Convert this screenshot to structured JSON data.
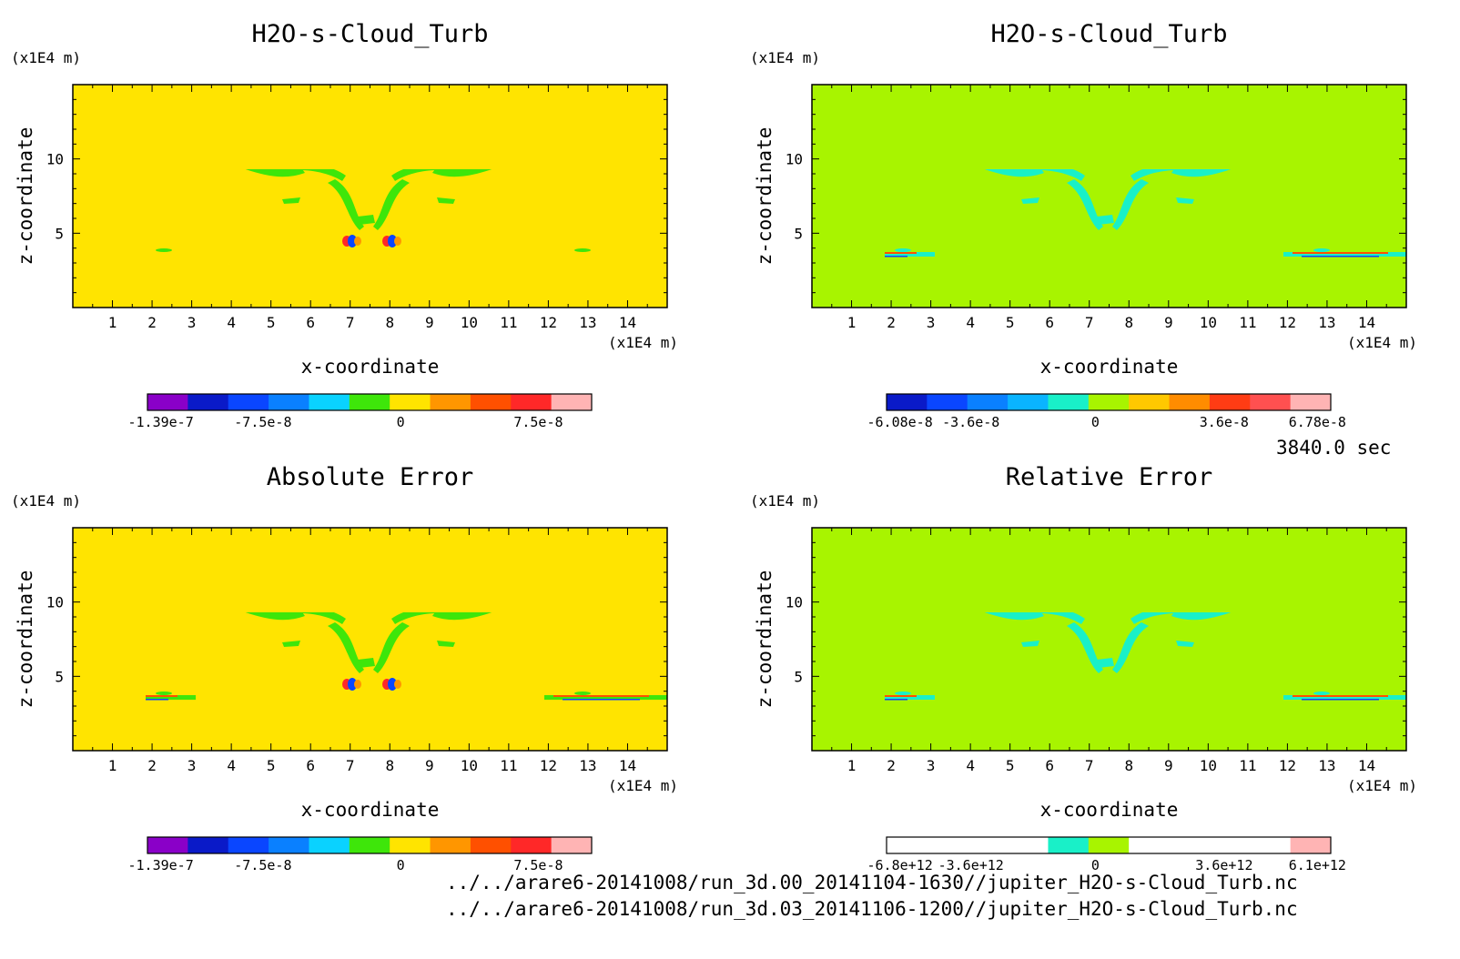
{
  "time_label": "3840.0 sec",
  "file_paths": [
    "../../arare6-20141008/run_3d.00_20141104-1630//jupiter_H2O-s-Cloud_Turb.nc",
    "../../arare6-20141008/run_3d.03_20141106-1200//jupiter_H2O-s-Cloud_Turb.nc"
  ],
  "colors": {
    "yellow_bg": "#ffe400",
    "green_bg": "#a8f400",
    "green": "#3ee60a",
    "cyan": "#19f0c8"
  },
  "chart_data": [
    {
      "type": "heatmap",
      "title": "H2O-s-Cloud_Turb",
      "xlabel": "x-coordinate",
      "ylabel": "z-coordinate",
      "xunit": "(x1E4 m)",
      "yunit": "(x1E4 m)",
      "xlim": [
        0,
        15
      ],
      "ylim": [
        0,
        15
      ],
      "x_ticks": [
        "1",
        "2",
        "3",
        "4",
        "5",
        "6",
        "7",
        "8",
        "9",
        "10",
        "11",
        "12",
        "13",
        "14"
      ],
      "y_ticks": [
        "5",
        "10"
      ],
      "colorbar": {
        "labels": [
          "-1.39e-7",
          "-7.5e-8",
          "0",
          "7.5e-8"
        ],
        "colors": [
          "#8a00c8",
          "#0a1ac8",
          "#0a46ff",
          "#0a80ff",
          "#0ad2ff",
          "#3ee60a",
          "#ffe400",
          "#ff9600",
          "#ff5000",
          "#ff2828",
          "#ffb4b4"
        ]
      },
      "background": "#ffe400",
      "feature_color": "#3ee60a"
    },
    {
      "type": "heatmap",
      "title": "H2O-s-Cloud_Turb",
      "xlabel": "x-coordinate",
      "ylabel": "z-coordinate",
      "xunit": "(x1E4 m)",
      "yunit": "(x1E4 m)",
      "xlim": [
        0,
        15
      ],
      "ylim": [
        0,
        15
      ],
      "x_ticks": [
        "1",
        "2",
        "3",
        "4",
        "5",
        "6",
        "7",
        "8",
        "9",
        "10",
        "11",
        "12",
        "13",
        "14"
      ],
      "y_ticks": [
        "5",
        "10"
      ],
      "colorbar": {
        "labels": [
          "-6.08e-8",
          "-3.6e-8",
          "0",
          "3.6e-8",
          "6.78e-8"
        ],
        "colors": [
          "#0a1ac8",
          "#0a46ff",
          "#0a80ff",
          "#0ab4ff",
          "#19f0c8",
          "#a8f400",
          "#ffc800",
          "#ff8c00",
          "#ff3c14",
          "#ff5050",
          "#ffb4b4"
        ]
      },
      "background": "#a8f400",
      "feature_color": "#19f0c8"
    },
    {
      "type": "heatmap",
      "title": "Absolute Error",
      "xlabel": "x-coordinate",
      "ylabel": "z-coordinate",
      "xunit": "(x1E4 m)",
      "yunit": "(x1E4 m)",
      "xlim": [
        0,
        15
      ],
      "ylim": [
        0,
        15
      ],
      "x_ticks": [
        "1",
        "2",
        "3",
        "4",
        "5",
        "6",
        "7",
        "8",
        "9",
        "10",
        "11",
        "12",
        "13",
        "14"
      ],
      "y_ticks": [
        "5",
        "10"
      ],
      "colorbar": {
        "labels": [
          "-1.39e-7",
          "-7.5e-8",
          "0",
          "7.5e-8"
        ],
        "colors": [
          "#8a00c8",
          "#0a1ac8",
          "#0a46ff",
          "#0a80ff",
          "#0ad2ff",
          "#3ee60a",
          "#ffe400",
          "#ff9600",
          "#ff5000",
          "#ff2828",
          "#ffb4b4"
        ]
      },
      "background": "#ffe400",
      "feature_color": "#3ee60a"
    },
    {
      "type": "heatmap",
      "title": "Relative Error",
      "xlabel": "x-coordinate",
      "ylabel": "z-coordinate",
      "xunit": "(x1E4 m)",
      "yunit": "(x1E4 m)",
      "xlim": [
        0,
        15
      ],
      "ylim": [
        0,
        15
      ],
      "x_ticks": [
        "1",
        "2",
        "3",
        "4",
        "5",
        "6",
        "7",
        "8",
        "9",
        "10",
        "11",
        "12",
        "13",
        "14"
      ],
      "y_ticks": [
        "5",
        "10"
      ],
      "colorbar": {
        "labels": [
          "-6.8e+12",
          "-3.6e+12",
          "0",
          "3.6e+12",
          "6.1e+12"
        ],
        "colors": [
          "#ffffff",
          "#ffffff",
          "#ffffff",
          "#ffffff",
          "#19f0c8",
          "#a8f400",
          "#ffffff",
          "#ffffff",
          "#ffffff",
          "#ffffff",
          "#ffb4b4"
        ]
      },
      "background": "#a8f400",
      "feature_color": "#19f0c8"
    }
  ]
}
